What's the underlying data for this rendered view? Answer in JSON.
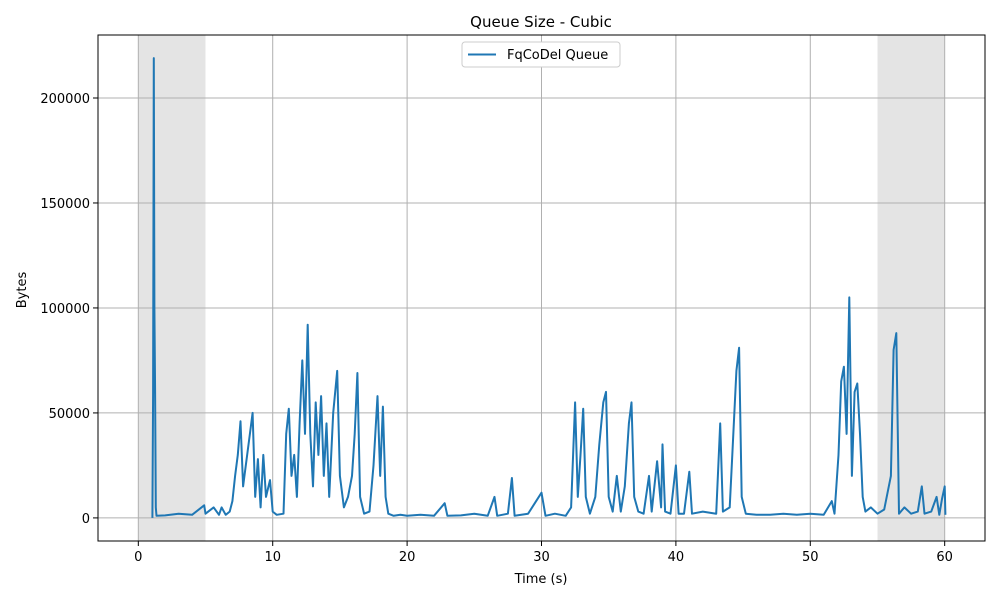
{
  "chart_data": {
    "type": "line",
    "title": "Queue Size - Cubic",
    "xlabel": "Time (s)",
    "ylabel": "Bytes",
    "xlim": [
      -3,
      63
    ],
    "ylim": [
      -11000,
      230000
    ],
    "xticks": [
      0,
      10,
      20,
      30,
      40,
      50,
      60
    ],
    "xtick_labels": [
      "0",
      "10",
      "20",
      "30",
      "40",
      "50",
      "60"
    ],
    "yticks": [
      0,
      50000,
      100000,
      150000,
      200000
    ],
    "ytick_labels": [
      "0",
      "50000",
      "100000",
      "150000",
      "200000"
    ],
    "grid": true,
    "legend": {
      "position": "top-center",
      "entries": [
        "FqCoDel Queue"
      ]
    },
    "shaded_regions": [
      {
        "x": [
          0,
          5
        ],
        "color": "#e4e4e4"
      },
      {
        "x": [
          55,
          60
        ],
        "color": "#e4e4e4"
      }
    ],
    "series": [
      {
        "name": "FqCoDel Queue",
        "color": "#1f77b4",
        "points": [
          [
            1.05,
            0
          ],
          [
            1.1,
            60000
          ],
          [
            1.15,
            219000
          ],
          [
            1.2,
            100000
          ],
          [
            1.25,
            60000
          ],
          [
            1.3,
            5000
          ],
          [
            1.35,
            1000
          ],
          [
            2.0,
            1200
          ],
          [
            3.0,
            2000
          ],
          [
            4.0,
            1500
          ],
          [
            4.9,
            6000
          ],
          [
            5.0,
            2000
          ],
          [
            5.6,
            5000
          ],
          [
            6.0,
            1500
          ],
          [
            6.2,
            5000
          ],
          [
            6.5,
            1500
          ],
          [
            6.8,
            3000
          ],
          [
            7.0,
            8000
          ],
          [
            7.2,
            20000
          ],
          [
            7.4,
            30000
          ],
          [
            7.6,
            46000
          ],
          [
            7.8,
            15000
          ],
          [
            8.0,
            25000
          ],
          [
            8.3,
            40000
          ],
          [
            8.5,
            50000
          ],
          [
            8.7,
            10000
          ],
          [
            8.9,
            28000
          ],
          [
            9.1,
            5000
          ],
          [
            9.3,
            30000
          ],
          [
            9.5,
            10000
          ],
          [
            9.8,
            18000
          ],
          [
            10.0,
            3000
          ],
          [
            10.3,
            1500
          ],
          [
            10.8,
            2000
          ],
          [
            11.0,
            40000
          ],
          [
            11.2,
            52000
          ],
          [
            11.4,
            20000
          ],
          [
            11.6,
            30000
          ],
          [
            11.8,
            10000
          ],
          [
            12.0,
            45000
          ],
          [
            12.2,
            75000
          ],
          [
            12.4,
            40000
          ],
          [
            12.6,
            92000
          ],
          [
            12.8,
            40000
          ],
          [
            13.0,
            15000
          ],
          [
            13.2,
            55000
          ],
          [
            13.4,
            30000
          ],
          [
            13.6,
            58000
          ],
          [
            13.8,
            20000
          ],
          [
            14.0,
            45000
          ],
          [
            14.2,
            10000
          ],
          [
            14.5,
            50000
          ],
          [
            14.8,
            70000
          ],
          [
            15.0,
            20000
          ],
          [
            15.3,
            5000
          ],
          [
            15.6,
            10000
          ],
          [
            15.9,
            20000
          ],
          [
            16.1,
            40000
          ],
          [
            16.3,
            69000
          ],
          [
            16.5,
            10000
          ],
          [
            16.8,
            2000
          ],
          [
            17.2,
            3000
          ],
          [
            17.5,
            25000
          ],
          [
            17.8,
            58000
          ],
          [
            18.0,
            20000
          ],
          [
            18.2,
            53000
          ],
          [
            18.4,
            10000
          ],
          [
            18.6,
            2000
          ],
          [
            19.0,
            1000
          ],
          [
            19.5,
            1500
          ],
          [
            20.0,
            1000
          ],
          [
            21.0,
            1500
          ],
          [
            22.0,
            1000
          ],
          [
            22.8,
            7000
          ],
          [
            23.0,
            1000
          ],
          [
            24.0,
            1200
          ],
          [
            25.0,
            2000
          ],
          [
            26.0,
            1000
          ],
          [
            26.5,
            10000
          ],
          [
            26.7,
            1000
          ],
          [
            27.5,
            2000
          ],
          [
            27.8,
            19000
          ],
          [
            28.0,
            1000
          ],
          [
            29.0,
            2000
          ],
          [
            29.5,
            7000
          ],
          [
            30.0,
            12000
          ],
          [
            30.3,
            1000
          ],
          [
            31.0,
            2000
          ],
          [
            31.8,
            1000
          ],
          [
            32.2,
            5000
          ],
          [
            32.5,
            55000
          ],
          [
            32.7,
            10000
          ],
          [
            32.9,
            30000
          ],
          [
            33.1,
            52000
          ],
          [
            33.3,
            10000
          ],
          [
            33.6,
            2000
          ],
          [
            34.0,
            10000
          ],
          [
            34.3,
            35000
          ],
          [
            34.6,
            55000
          ],
          [
            34.8,
            60000
          ],
          [
            35.0,
            10000
          ],
          [
            35.3,
            3000
          ],
          [
            35.6,
            20000
          ],
          [
            35.9,
            3000
          ],
          [
            36.2,
            15000
          ],
          [
            36.5,
            45000
          ],
          [
            36.7,
            55000
          ],
          [
            36.9,
            10000
          ],
          [
            37.2,
            3000
          ],
          [
            37.6,
            2000
          ],
          [
            38.0,
            20000
          ],
          [
            38.2,
            3000
          ],
          [
            38.6,
            27000
          ],
          [
            38.9,
            5000
          ],
          [
            39.0,
            35000
          ],
          [
            39.2,
            3000
          ],
          [
            39.6,
            2000
          ],
          [
            40.0,
            25000
          ],
          [
            40.2,
            2000
          ],
          [
            40.6,
            2000
          ],
          [
            41.0,
            22000
          ],
          [
            41.2,
            2000
          ],
          [
            42.0,
            3000
          ],
          [
            43.0,
            2000
          ],
          [
            43.3,
            45000
          ],
          [
            43.5,
            3000
          ],
          [
            44.0,
            5000
          ],
          [
            44.2,
            30000
          ],
          [
            44.5,
            70000
          ],
          [
            44.7,
            81000
          ],
          [
            44.9,
            10000
          ],
          [
            45.2,
            2000
          ],
          [
            46.0,
            1500
          ],
          [
            47.0,
            1500
          ],
          [
            48.0,
            2000
          ],
          [
            49.0,
            1500
          ],
          [
            50.0,
            2000
          ],
          [
            51.0,
            1500
          ],
          [
            51.6,
            8000
          ],
          [
            51.8,
            2000
          ],
          [
            52.1,
            30000
          ],
          [
            52.3,
            65000
          ],
          [
            52.5,
            72000
          ],
          [
            52.7,
            40000
          ],
          [
            52.9,
            105000
          ],
          [
            53.1,
            20000
          ],
          [
            53.3,
            60000
          ],
          [
            53.5,
            64000
          ],
          [
            53.7,
            40000
          ],
          [
            53.9,
            10000
          ],
          [
            54.1,
            3000
          ],
          [
            54.5,
            5000
          ],
          [
            55.0,
            2000
          ],
          [
            55.5,
            4000
          ],
          [
            56.0,
            20000
          ],
          [
            56.2,
            80000
          ],
          [
            56.4,
            88000
          ],
          [
            56.6,
            2000
          ],
          [
            57.0,
            5000
          ],
          [
            57.5,
            2000
          ],
          [
            58.0,
            3000
          ],
          [
            58.3,
            15000
          ],
          [
            58.5,
            2000
          ],
          [
            59.0,
            3000
          ],
          [
            59.4,
            10000
          ],
          [
            59.6,
            1500
          ],
          [
            59.8,
            9000
          ],
          [
            60.0,
            15000
          ],
          [
            60.05,
            1500
          ]
        ]
      }
    ]
  }
}
